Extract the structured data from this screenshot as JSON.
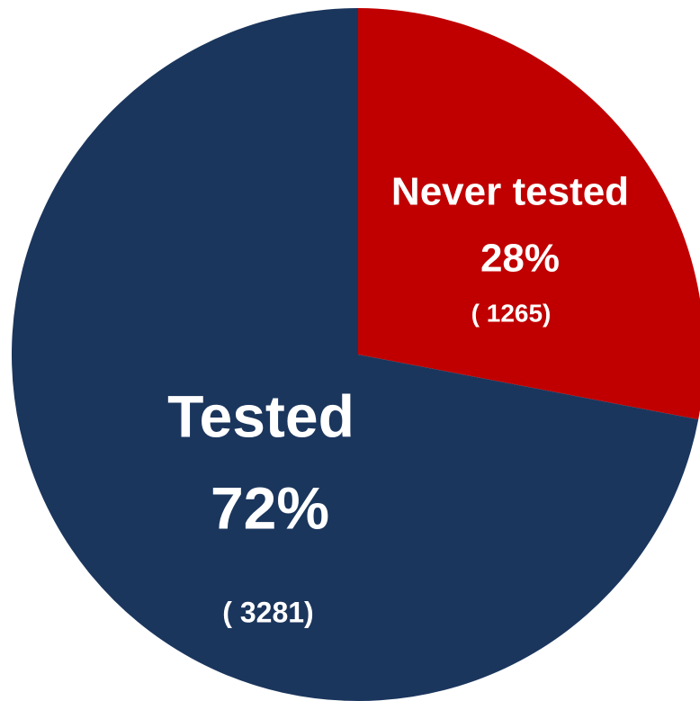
{
  "chart_data": {
    "type": "pie",
    "categories": [
      "Never tested",
      "Tested"
    ],
    "values": [
      28,
      72
    ],
    "value_labels": [
      "28%",
      "72%"
    ],
    "counts": [
      1265,
      3281
    ],
    "count_labels": [
      "( 1265)",
      "( 3281)"
    ],
    "colors": [
      "#c00000",
      "#1b365d"
    ]
  }
}
